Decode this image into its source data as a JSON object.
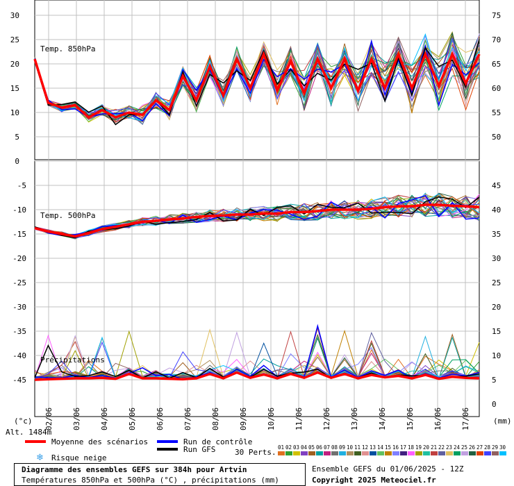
{
  "chart_data": {
    "type": "line",
    "title": "Diagramme des ensembles GEFS sur 384h pour Artvin",
    "subtitle": "Températures 850hPa et 500hPa (°C) , précipitations (mm)",
    "run_info": "Ensemble GEFS du 01/06/2025 - 12Z",
    "copyright": "Copyright 2025 Meteociel.fr",
    "altitude": "Alt. 1484m",
    "left_unit": "(°c)",
    "right_unit": "(mm)",
    "x_tick_labels": [
      "02/06",
      "03/06",
      "04/06",
      "05/06",
      "06/06",
      "07/06",
      "08/06",
      "09/06",
      "10/06",
      "11/06",
      "12/06",
      "13/06",
      "14/06",
      "15/06",
      "16/06",
      "17/06"
    ],
    "x_range_days": [
      1.5,
      17.5
    ],
    "grid": true,
    "panels": [
      {
        "name": "Temp. 850hPa",
        "left_ticks": [
          30,
          25,
          20,
          15,
          10,
          5,
          0
        ],
        "right_ticks": [
          75,
          70,
          65,
          60,
          55,
          50
        ],
        "ylim_left": [
          0,
          30
        ],
        "ylim_right": [
          45,
          75
        ]
      },
      {
        "name": "Temp. 500hPa",
        "left_ticks": [
          -5,
          -10,
          -15,
          -20,
          -25,
          -30,
          -35,
          -40,
          -45
        ],
        "right_ticks": [
          45,
          40,
          35,
          30,
          25,
          20,
          15,
          10,
          5,
          0
        ],
        "ylim_left": [
          -45,
          -5
        ],
        "ylim_right": [
          0,
          40
        ]
      },
      {
        "name": "Précipitations"
      }
    ],
    "series": [
      {
        "name": "Moyenne des scénarios",
        "color": "#ff0000",
        "t850": [
          21,
          12,
          11,
          11.5,
          9,
          10.5,
          9,
          10,
          9.5,
          12.5,
          10.5,
          17.5,
          12.5,
          19.5,
          13.5,
          21,
          15,
          22,
          14.5,
          20.5,
          14,
          21,
          15,
          21,
          14.5,
          21,
          15,
          22,
          15,
          22,
          15.5,
          22,
          16,
          22
        ],
        "t500": [
          -13.8,
          -14.5,
          -15,
          -15.5,
          -14.8,
          -14,
          -13.5,
          -13,
          -12.5,
          -12.3,
          -12,
          -11.8,
          -11.5,
          -11.3,
          -11.2,
          -11,
          -11,
          -10.8,
          -10.8,
          -10.5,
          -10.5,
          -10.3,
          -10,
          -10,
          -10,
          -9.8,
          -9.5,
          -9.3,
          -9.3,
          -9,
          -9,
          -9.2,
          -9.3,
          -9.5
        ],
        "precip": [
          0,
          0.1,
          0.2,
          0.3,
          0.3,
          0.4,
          0.2,
          1.2,
          0.3,
          0.3,
          0.2,
          0.1,
          0.3,
          1.2,
          0.3,
          1.5,
          0.4,
          1.1,
          0.3,
          1.2,
          0.4,
          1.5,
          0.4,
          1.2,
          0.3,
          1.0,
          0.5,
          0.8,
          0.3,
          1.0,
          0.2,
          0.6,
          0.4,
          0.3
        ]
      },
      {
        "name": "Run de contrôle",
        "color": "#0000ff"
      },
      {
        "name": "Run GFS",
        "color": "#000000"
      }
    ],
    "snow_legend": "Risque neige",
    "perturbations_label": "30 Perts.",
    "perturbation_numbers": [
      "01",
      "02",
      "03",
      "04",
      "05",
      "06",
      "07",
      "08",
      "09",
      "10",
      "11",
      "12",
      "13",
      "14",
      "15",
      "16",
      "17",
      "18",
      "19",
      "20",
      "21",
      "22",
      "23",
      "24",
      "25",
      "26",
      "27",
      "28",
      "29",
      "30"
    ],
    "perturbation_colors": [
      "#e07020",
      "#30a030",
      "#d0c000",
      "#8040c0",
      "#a06020",
      "#00a0a0",
      "#c02080",
      "#707070",
      "#20b0e0",
      "#b09060",
      "#406020",
      "#e09090",
      "#0050a0",
      "#60c060",
      "#c08000",
      "#8080ff",
      "#402080",
      "#ff60ff",
      "#a0a000",
      "#20c0a0",
      "#c04040",
      "#6060a0",
      "#e0c060",
      "#00a060",
      "#c0a0e0",
      "#206040",
      "#e04000",
      "#4040ff",
      "#906060",
      "#00c0ff"
    ]
  }
}
